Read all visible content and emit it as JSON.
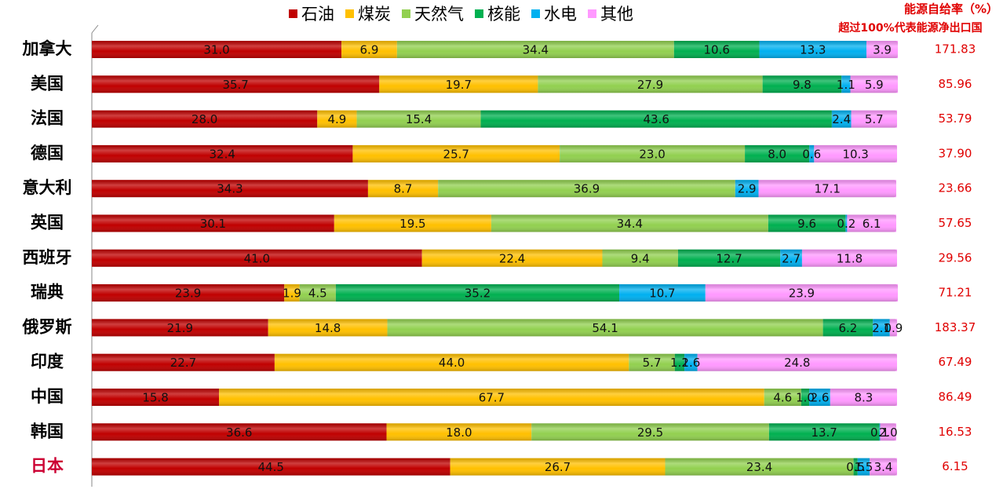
{
  "chart_data": {
    "type": "stacked_bar_h",
    "categories": [
      "加拿大",
      "美国",
      "法国",
      "德国",
      "意大利",
      "英国",
      "西班牙",
      "瑞典",
      "俄罗斯",
      "印度",
      "中国",
      "韩国",
      "日本"
    ],
    "highlight_index": 12,
    "highlight_color": "#cc0033",
    "xlim": [
      0,
      100
    ],
    "series": [
      {
        "name": "石油",
        "color": "#c00000",
        "values": [
          31.0,
          35.7,
          28.0,
          32.4,
          34.3,
          30.1,
          41.0,
          23.9,
          21.9,
          22.7,
          15.8,
          36.6,
          44.5
        ],
        "value_labels": [
          "31.0",
          "35.7",
          "28.0",
          "32.4",
          "34.3",
          "30.1",
          "41.0",
          "23.9",
          "21.9",
          "22.7",
          "15.8",
          "36.6",
          "44.5"
        ]
      },
      {
        "name": "煤炭",
        "color": "#ffc000",
        "values": [
          6.9,
          19.7,
          4.9,
          25.7,
          8.7,
          19.5,
          22.4,
          1.9,
          14.8,
          44.0,
          67.7,
          18.0,
          26.7
        ],
        "value_labels": [
          "6.9",
          "19.7",
          "4.9",
          "25.7",
          "8.7",
          "19.5",
          "22.4",
          "1.9",
          "14.8",
          "44.0",
          "67.7",
          "18.0",
          "26.7"
        ]
      },
      {
        "name": "天然气",
        "color": "#92d050",
        "values": [
          34.4,
          27.9,
          15.4,
          23.0,
          36.9,
          34.4,
          9.4,
          4.5,
          54.1,
          5.7,
          4.6,
          29.5,
          23.4
        ],
        "value_labels": [
          "34.4",
          "27.9",
          "15.4",
          "23.0",
          "36.9",
          "34.4",
          "9.4",
          "4.5",
          "54.1",
          "5.7",
          "4.6",
          "29.5",
          "23.4"
        ]
      },
      {
        "name": "核能",
        "color": "#00b050",
        "values": [
          10.6,
          9.8,
          43.6,
          8.0,
          null,
          9.6,
          12.7,
          35.2,
          6.2,
          1.2,
          1.0,
          13.7,
          0.5
        ],
        "value_labels": [
          "10.6",
          "9.8",
          "43.6",
          "8.0",
          null,
          "9.6",
          "12.7",
          "35.2",
          "6.2",
          "1.2",
          "1.0",
          "13.7",
          "0.5"
        ]
      },
      {
        "name": "水电",
        "color": "#00b0f0",
        "values": [
          13.3,
          1.1,
          2.4,
          0.6,
          2.9,
          0.2,
          2.7,
          10.7,
          2.1,
          1.6,
          2.6,
          0.1,
          1.5
        ],
        "value_labels": [
          "13.3",
          "1.1",
          "2.4",
          "0.6",
          "2.9",
          "0.2",
          "2.7",
          "10.7",
          "2.1",
          "1.6",
          "2.6",
          "0.1",
          "1.5"
        ]
      },
      {
        "name": "其他",
        "color": "#ff99ff",
        "values": [
          3.9,
          5.9,
          5.7,
          10.3,
          17.1,
          6.1,
          11.8,
          23.9,
          0.9,
          24.8,
          8.3,
          2.0,
          3.4
        ],
        "value_labels": [
          "3.9",
          "5.9",
          "5.7",
          "10.3",
          "17.1",
          "6.1",
          "11.8",
          "23.9",
          "0.9",
          "24.8",
          "8.3",
          "2.0",
          "3.4"
        ]
      }
    ],
    "self_sufficiency": {
      "title": "能源自给率（%）",
      "subtitle": "超过100%代表能源净出口国",
      "color": "#e00000",
      "values": [
        171.83,
        85.96,
        53.79,
        37.9,
        23.66,
        57.65,
        29.56,
        71.21,
        183.37,
        67.49,
        86.49,
        16.53,
        6.15
      ],
      "value_labels": [
        "171.83",
        "85.96",
        "53.79",
        "37.90",
        "23.66",
        "57.65",
        "29.56",
        "71.21",
        "183.37",
        "67.49",
        "86.49",
        "16.53",
        "6.15"
      ]
    }
  }
}
